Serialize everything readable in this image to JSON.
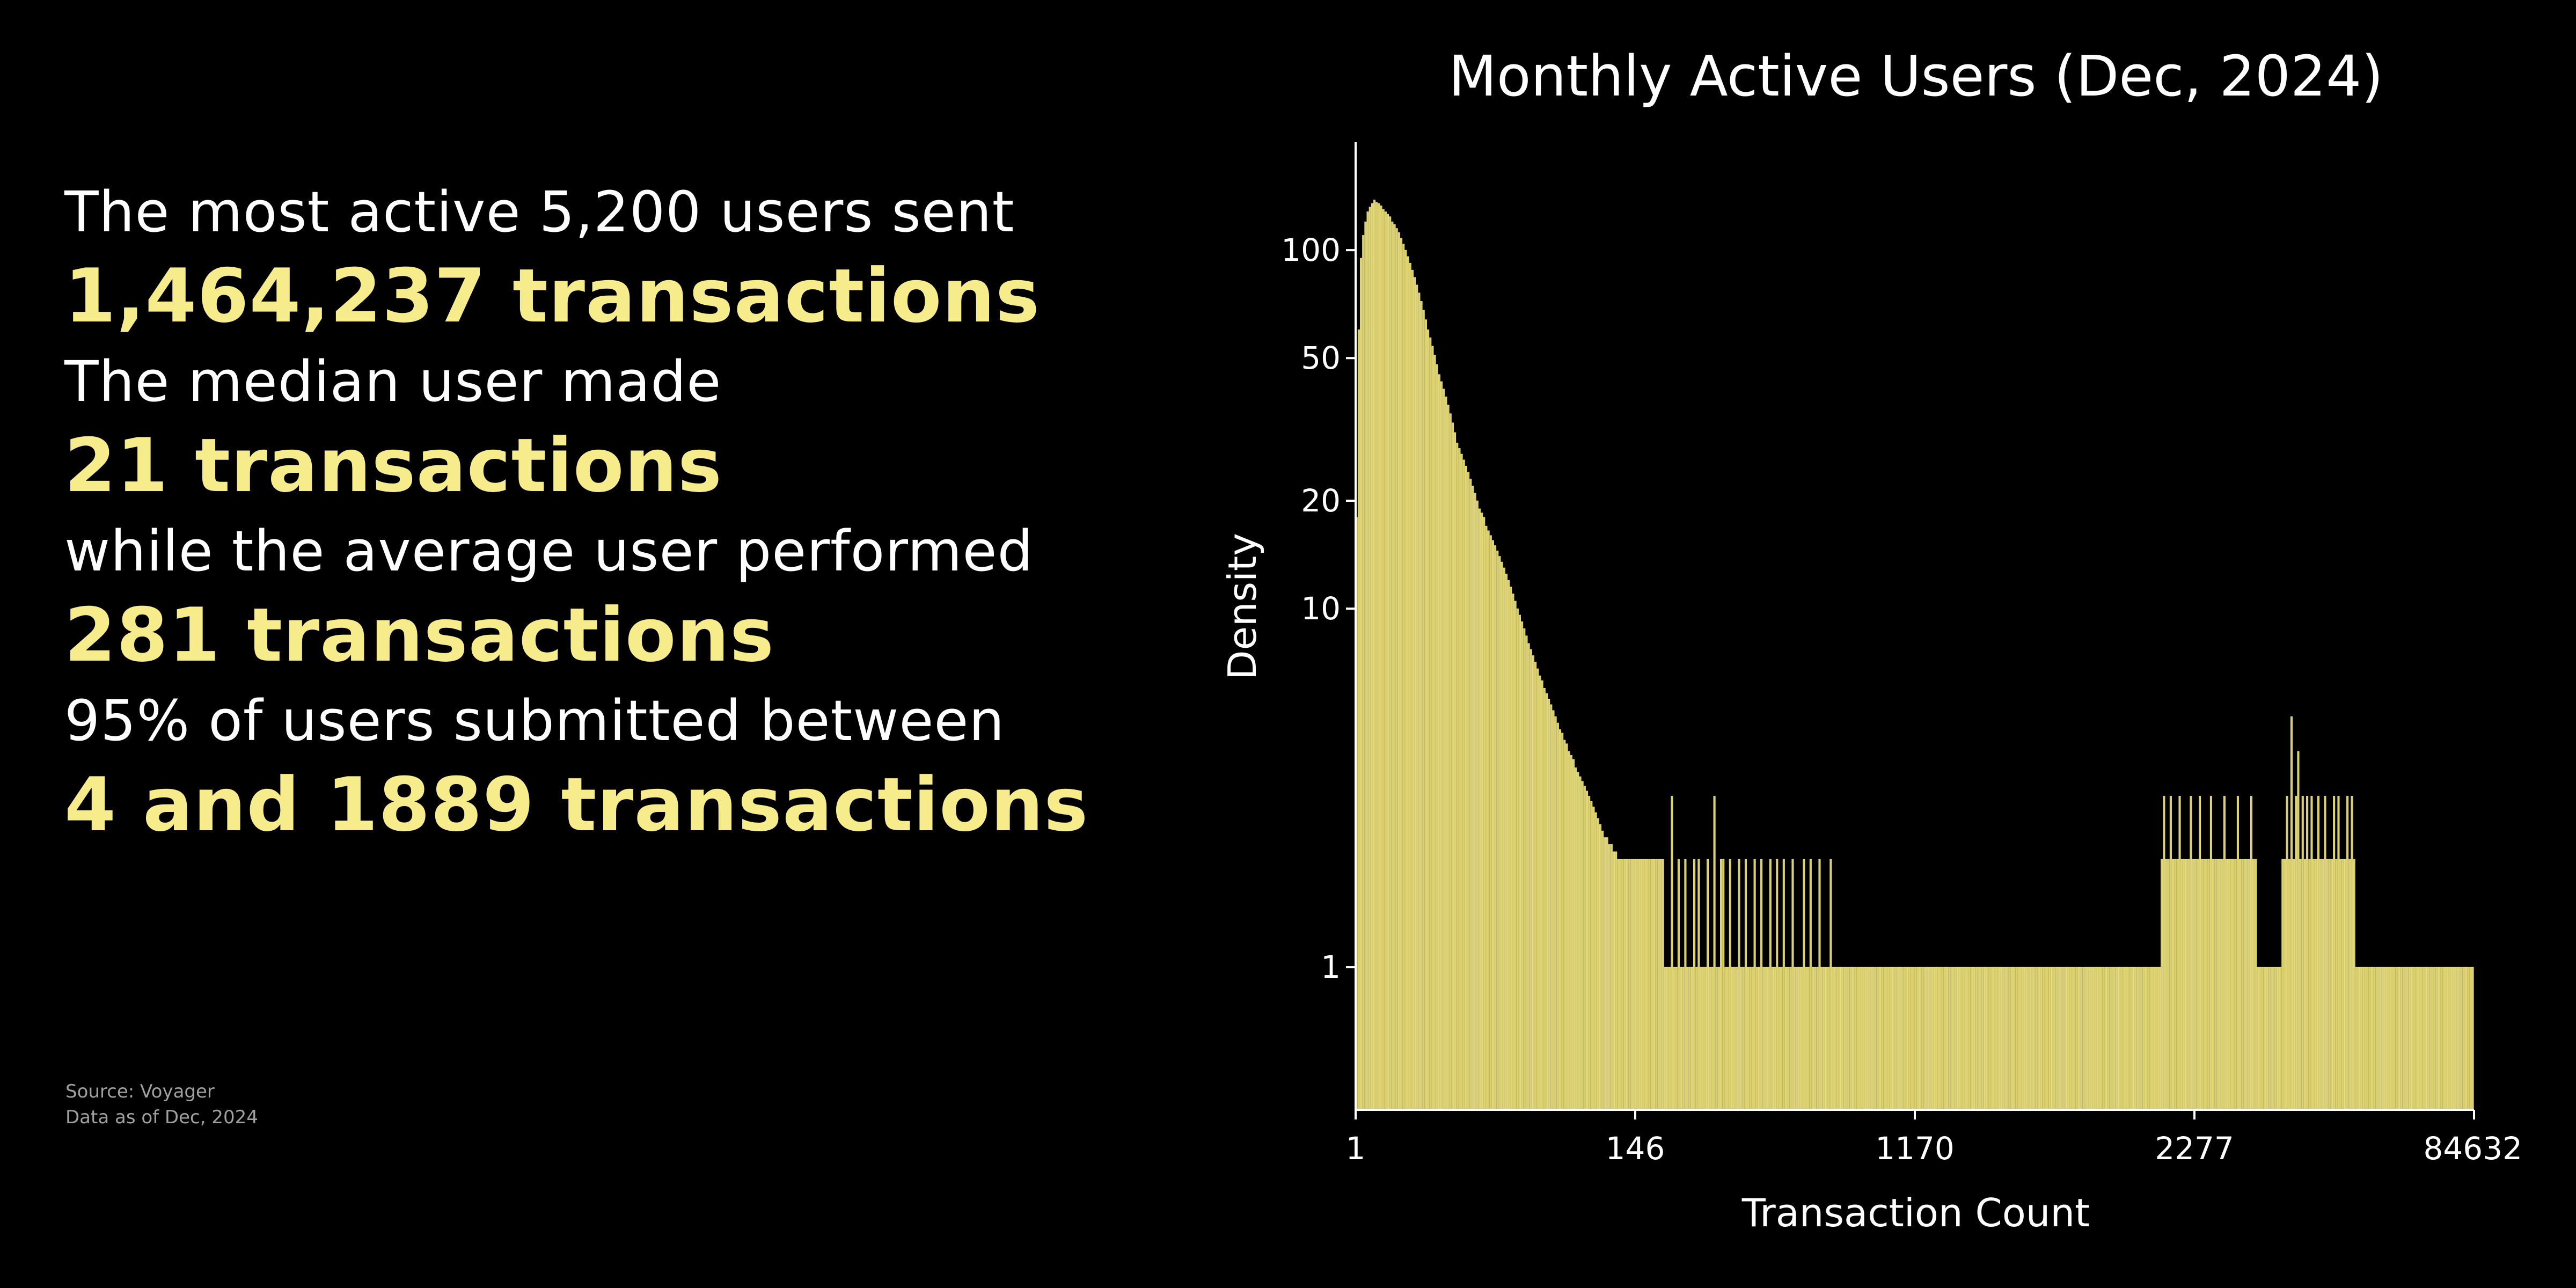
{
  "stats": {
    "line1": "The most active 5,200 users sent",
    "value1": "1,464,237 transactions",
    "line2": "The median user made",
    "value2": "21 transactions",
    "line3": "while the average user performed",
    "value3": "281 transactions",
    "line4": "95% of users submitted between",
    "value4": "4 and 1889 transactions"
  },
  "source": {
    "line1": "Source: Voyager",
    "line2": "Data as of Dec, 2024"
  },
  "colors": {
    "background": "#000000",
    "text": "#ffffff",
    "accent": "#f7ec8c",
    "bar_fill": "#d9cf6f",
    "bar_edge": "#f7ec8c"
  },
  "chart_data": {
    "type": "bar",
    "title": "Monthly Active Users (Dec, 2024)",
    "xlabel": "Transaction Count",
    "ylabel": "Density",
    "x_tick_labels": [
      "1",
      "146",
      "1170",
      "2277",
      "84632"
    ],
    "y_ticks": [
      1,
      10,
      20,
      50,
      100
    ],
    "y_scale": "log",
    "ylim": [
      0.4,
      200
    ],
    "grid": false,
    "x_description": "ordered distinct transaction-count values (categorical, axis labels at 1, 146, 1170, 2277, 84632)",
    "bar_count": 500,
    "series": [
      {
        "values_by_segment": {
          "head": [
            18,
            60,
            95,
            110,
            120,
            128,
            132,
            135,
            138,
            136,
            135,
            133,
            130,
            128,
            126,
            124,
            120,
            118,
            115,
            112,
            108,
            104,
            100,
            96,
            92,
            88,
            84,
            80,
            76,
            72,
            68,
            64,
            60,
            57,
            54,
            51,
            48,
            45,
            43,
            41,
            39,
            37,
            35,
            33,
            31,
            29,
            28,
            27,
            26,
            25,
            24,
            23,
            22,
            21,
            20,
            19,
            18.5,
            18,
            17,
            16.5,
            16,
            15.5,
            15,
            14.5,
            14,
            13.5,
            13,
            12.5,
            12,
            11.5,
            11,
            10.5,
            10,
            9.6,
            9.2,
            8.8,
            8.4,
            8,
            7.7,
            7.4,
            7.1,
            6.8,
            6.5,
            6.3,
            6,
            5.8,
            5.6,
            5.4,
            5.2,
            5,
            4.8,
            4.6,
            4.5,
            4.3,
            4.2,
            4,
            3.9,
            3.8,
            3.6,
            3.5,
            3.4,
            3.3,
            3.2,
            3.1,
            3,
            2.9,
            2.8,
            2.7,
            2.6,
            2.5,
            2.4,
            2.3,
            2.3,
            2.2,
            2.2,
            2.1,
            2.1,
            2,
            2,
            2,
            2,
            2,
            2,
            2,
            2,
            2,
            2,
            2,
            2,
            2,
            2,
            2,
            2,
            2,
            2,
            2,
            2,
            2
          ],
          "mid": [
            1,
            1,
            1,
            3,
            1,
            1,
            2,
            1,
            1,
            2,
            1,
            1,
            1,
            2,
            1,
            2,
            1,
            1,
            1,
            2,
            1,
            1,
            3,
            1,
            1,
            2,
            2,
            1,
            1,
            2,
            1,
            1,
            1,
            2,
            1,
            1,
            2,
            1,
            1,
            1,
            2,
            1,
            1,
            2,
            1,
            1,
            1,
            2,
            1,
            1,
            2,
            1,
            1,
            2,
            1,
            1,
            1,
            2,
            1,
            1,
            1,
            1,
            2,
            1,
            1,
            2,
            1,
            1,
            1,
            2,
            1,
            1,
            1,
            1,
            2,
            1,
            1,
            1,
            1,
            1,
            1,
            1,
            1,
            1,
            1,
            1,
            1,
            1,
            1,
            1,
            1,
            1,
            1,
            1,
            1,
            1,
            1,
            1,
            1,
            1,
            1,
            1,
            1,
            1,
            1,
            1,
            1,
            1,
            1,
            1
          ],
          "tail": [
            2,
            3,
            2,
            2,
            3,
            2,
            2,
            2,
            3,
            2,
            2,
            2,
            2,
            3,
            2,
            2,
            2,
            3,
            2,
            2,
            2,
            2,
            3,
            2,
            2,
            2,
            2,
            2,
            3,
            2,
            2,
            2,
            2,
            2,
            3,
            2,
            2,
            2,
            2,
            2,
            3,
            2,
            2,
            1,
            1,
            1,
            1,
            1,
            1,
            1,
            1,
            1,
            1,
            1,
            2,
            2,
            3,
            2,
            5,
            2,
            3,
            4,
            2,
            3,
            2,
            3,
            2,
            3,
            2,
            2,
            3,
            2,
            2,
            3,
            2,
            2,
            2,
            3,
            2,
            3,
            2,
            2,
            2,
            3,
            2,
            3,
            2,
            1,
            1,
            1,
            1,
            1,
            1,
            1,
            1,
            1,
            1,
            1,
            1,
            1,
            1,
            1,
            1,
            1,
            1,
            1,
            1,
            1,
            1,
            1,
            1,
            1,
            1,
            1,
            1,
            1,
            1,
            1,
            1,
            1,
            1,
            1,
            1,
            1,
            1,
            1,
            1,
            1,
            1,
            1,
            1,
            1,
            1,
            1,
            1,
            1,
            1,
            1,
            1,
            1
          ]
        }
      }
    ]
  }
}
